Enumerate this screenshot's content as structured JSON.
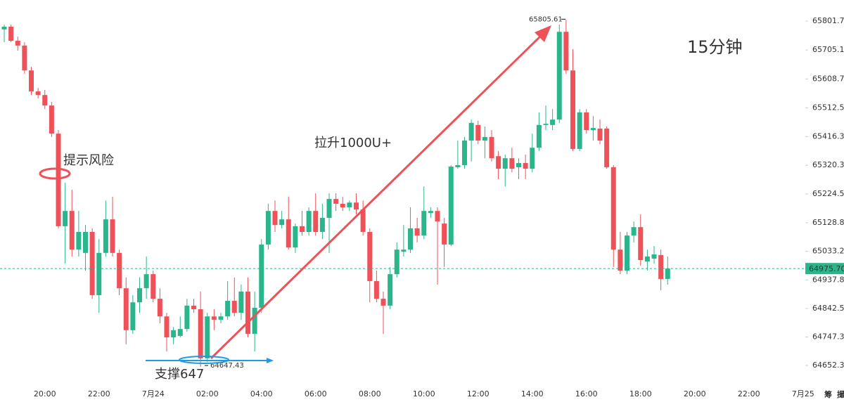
{
  "chart_data": {
    "type": "candlestick",
    "categories": [
      null,
      null,
      null,
      null,
      null,
      null,
      "20:00",
      null,
      null,
      null,
      null,
      null,
      null,
      null,
      "22:00",
      null,
      null,
      null,
      null,
      null,
      null,
      null,
      "7月24",
      null,
      null,
      null,
      null,
      null,
      null,
      null,
      "02:00",
      null,
      null,
      null,
      null,
      null,
      null,
      null,
      "04:00",
      null,
      null,
      null,
      null,
      null,
      null,
      null,
      "06:00",
      null,
      null,
      null,
      null,
      null,
      null,
      null,
      "08:00",
      null,
      null,
      null,
      null,
      null,
      null,
      null,
      "10:00",
      null,
      null,
      null,
      null,
      null,
      null,
      null,
      "12:00",
      null,
      null,
      null,
      null,
      null,
      null,
      null,
      "14:00",
      null,
      null,
      null,
      null,
      null,
      null,
      null,
      "16:00",
      null,
      null,
      null,
      null,
      null,
      null,
      null,
      "18:00",
      null,
      null,
      null,
      null,
      null,
      null,
      null,
      "20:00",
      null,
      null,
      null,
      null,
      null,
      null,
      null,
      "22:00",
      null,
      null,
      null,
      null,
      null,
      null,
      null,
      "7月25"
    ],
    "open": [
      65774,
      65783,
      65736,
      65720,
      65637,
      65567,
      65555,
      65520,
      65426,
      65117,
      65168,
      65039,
      65028,
      65098,
      64887,
      65028,
      65140,
      65028,
      64910,
      64770,
      64863,
      64910,
      64957,
      64875,
      64816,
      64746,
      64751,
      64774,
      64852,
      64840,
      64676,
      64816,
      64805,
      64816,
      64868,
      64828,
      64899,
      64758,
      64845,
      65056,
      65168,
      65121,
      65140,
      65046,
      65117,
      65098,
      65168,
      65098,
      65145,
      65208,
      65192,
      65180,
      65196,
      65173,
      65098,
      64934,
      64875,
      64852,
      64957,
      65032,
      65039,
      65110,
      65086,
      65161,
      65168,
      65126,
      65056,
      65314,
      65321,
      65403,
      65455,
      65403,
      65415,
      65351,
      65309,
      65344,
      65314,
      65328,
      65309,
      65379,
      65455,
      65455,
      65473,
      65766,
      65637,
      65375,
      65497,
      65438,
      65443,
      65443,
      65314,
      65039,
      64969,
      65086,
      65114,
      64999,
      65009,
      65021,
      64941,
      null,
      null,
      null,
      null,
      null,
      null,
      null,
      null,
      null,
      null,
      null,
      null,
      null,
      null,
      null,
      null,
      null,
      null,
      null,
      null
    ],
    "high": [
      65790,
      65790,
      65750,
      65731,
      65649,
      65579,
      65572,
      65532,
      65438,
      65262,
      65239,
      65168,
      65121,
      65110,
      65074,
      65203,
      65215,
      65039,
      64946,
      64887,
      64946,
      65016,
      64969,
      64910,
      64828,
      64781,
      64816,
      64875,
      64875,
      64899,
      64828,
      64840,
      64828,
      64934,
      64946,
      64922,
      64946,
      64899,
      65074,
      65192,
      65203,
      65168,
      65215,
      65126,
      65168,
      65180,
      65227,
      65192,
      65227,
      65227,
      65215,
      65203,
      65227,
      65203,
      65110,
      64969,
      64899,
      64981,
      65063,
      65121,
      65180,
      65145,
      65250,
      65180,
      65180,
      65145,
      65321,
      65403,
      65415,
      65473,
      65469,
      65450,
      65438,
      65368,
      65356,
      65379,
      65344,
      65356,
      65426,
      65497,
      65520,
      65508,
      65790,
      65805.61,
      65708,
      65508,
      65508,
      65485,
      65473,
      65450,
      65321,
      65098,
      65098,
      65133,
      65157,
      65039,
      65051,
      65039,
      65016,
      null,
      null,
      null,
      null,
      null,
      null,
      null,
      null,
      null,
      null,
      null,
      null,
      null,
      null,
      null,
      null,
      null,
      null,
      null,
      null
    ],
    "low": [
      65731,
      65731,
      65703,
      65626,
      65555,
      65544,
      65508,
      65415,
      65110,
      64992,
      65016,
      65016,
      64969,
      64875,
      64828,
      65016,
      65016,
      64887,
      64723,
      64758,
      64828,
      64875,
      64863,
      64793,
      64699,
      64723,
      64746,
      64765,
      64828,
      64647.43,
      64664,
      64770,
      64793,
      64805,
      64816,
      64805,
      64746,
      64699,
      64828,
      65039,
      65098,
      65110,
      65039,
      65028,
      65086,
      65086,
      65086,
      65074,
      65028,
      65168,
      65168,
      65168,
      65157,
      65086,
      64863,
      64863,
      64758,
      64840,
      64946,
      65016,
      65028,
      65063,
      65074,
      65145,
      64922,
      64981,
      65051,
      65309,
      65309,
      65333,
      65391,
      65344,
      65333,
      65274,
      65250,
      65297,
      65274,
      65274,
      65297,
      65368,
      65438,
      65438,
      65462,
      65626,
      65368,
      65368,
      65426,
      65403,
      65391,
      65309,
      64981,
      64957,
      64957,
      65063,
      64985,
      64969,
      64992,
      64903,
      64922,
      null,
      null,
      null,
      null,
      null,
      null,
      null,
      null,
      null,
      null,
      null,
      null,
      null,
      null,
      null,
      null,
      null,
      null,
      null,
      null
    ],
    "close": [
      65783,
      65736,
      65720,
      65637,
      65567,
      65555,
      65520,
      65426,
      65117,
      65168,
      65039,
      65098,
      65098,
      64887,
      65028,
      65140,
      65028,
      64910,
      64770,
      64863,
      64910,
      64957,
      64875,
      64816,
      64746,
      64770,
      64774,
      64852,
      64840,
      64676,
      64816,
      64805,
      64816,
      64868,
      64828,
      64899,
      64758,
      64845,
      65056,
      65168,
      65121,
      65140,
      65046,
      65117,
      65098,
      65168,
      65098,
      65145,
      65208,
      65192,
      65180,
      65196,
      65173,
      65098,
      64934,
      64875,
      64852,
      64957,
      65039,
      65039,
      65110,
      65086,
      65168,
      65168,
      65133,
      65056,
      65316,
      65321,
      65403,
      65462,
      65403,
      65415,
      65344,
      65309,
      65344,
      65309,
      65328,
      65309,
      65379,
      65455,
      65459,
      65473,
      65766,
      65637,
      65375,
      65497,
      65438,
      65445,
      65403,
      65314,
      65039,
      64969,
      65086,
      65114,
      65004,
      65016,
      65023,
      64941,
      64975.7,
      null,
      null,
      null,
      null,
      null,
      null,
      null,
      null,
      null,
      null,
      null,
      null,
      null,
      null,
      null,
      null,
      null,
      null,
      null,
      null
    ],
    "up_color": "#2ab58c",
    "down_color": "#ef5159",
    "ylim": [
      64593.7,
      65872.1
    ],
    "yticks": [
      65801.74,
      65705.19,
      65608.74,
      {
        "value": 65512.5,
        "label": "65512.50"
      },
      65416.37,
      65320.37,
      65224.52,
      65128.81,
      65033.24,
      64937.82,
      64842.53,
      64747.38,
      64652.37
    ],
    "grid": false,
    "last_price": {
      "value": 64975.7,
      "label": "64975.70"
    },
    "last_price_color": "#2ab58c",
    "high_marker": 65805.61,
    "low_marker": 64647.43,
    "annotations": [
      {
        "text": "15分钟",
        "color": "#1d9be6"
      },
      {
        "text": "拉升1000U+",
        "color": "#ef5159"
      },
      {
        "text": "提示风险",
        "color": "#ef5159"
      },
      {
        "text": "支撑647",
        "color": "#1d9be6"
      }
    ]
  },
  "toolbar_labels": [
    "筹",
    "撮"
  ]
}
